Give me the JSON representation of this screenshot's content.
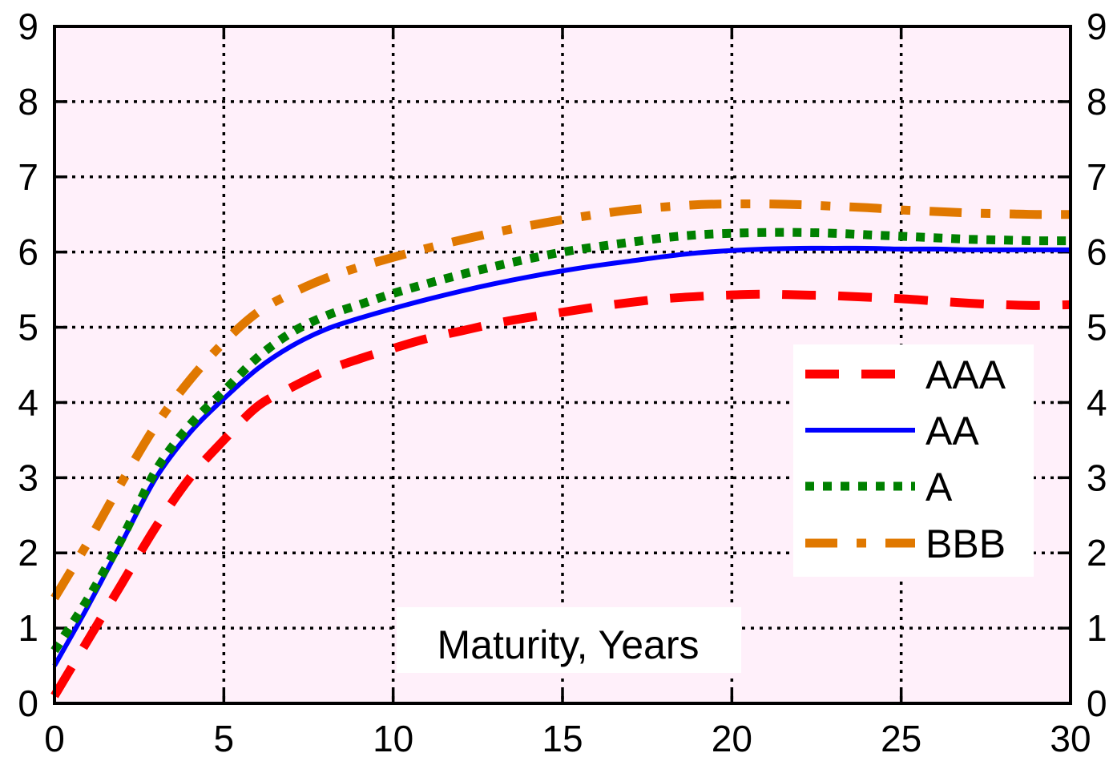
{
  "chart_data": {
    "type": "line",
    "title": "",
    "xlabel": "Maturity, Years",
    "ylabel": "",
    "xlim": [
      0,
      30
    ],
    "ylim": [
      0,
      9
    ],
    "xticks": [
      "0",
      "5",
      "10",
      "15",
      "20",
      "25",
      "30"
    ],
    "yticks": [
      "0",
      "1",
      "2",
      "3",
      "4",
      "5",
      "6",
      "7",
      "8",
      "9"
    ],
    "grid": true,
    "legend_position": "right",
    "background_color": "#fff0fa",
    "series": [
      {
        "name": "AAA",
        "color": "#ff0000",
        "style": "dashed",
        "x": [
          0,
          1,
          2,
          3,
          4,
          5,
          6,
          7,
          8,
          9,
          10,
          11,
          12,
          13,
          14,
          15,
          16,
          17,
          18,
          19,
          20,
          21,
          22,
          23,
          24,
          25,
          26,
          27,
          28,
          29,
          30
        ],
        "y": [
          0.1,
          0.85,
          1.6,
          2.35,
          3.0,
          3.5,
          3.95,
          4.2,
          4.42,
          4.58,
          4.72,
          4.85,
          4.95,
          5.05,
          5.13,
          5.2,
          5.27,
          5.33,
          5.38,
          5.41,
          5.43,
          5.44,
          5.43,
          5.42,
          5.4,
          5.38,
          5.35,
          5.32,
          5.3,
          5.29,
          5.3
        ]
      },
      {
        "name": "AA",
        "color": "#0000ff",
        "style": "solid",
        "x": [
          0,
          1,
          2,
          3,
          4,
          5,
          6,
          7,
          8,
          9,
          10,
          11,
          12,
          13,
          14,
          15,
          16,
          17,
          18,
          19,
          20,
          21,
          22,
          23,
          24,
          25,
          26,
          27,
          28,
          29,
          30
        ],
        "y": [
          0.5,
          1.3,
          2.15,
          3.0,
          3.6,
          4.05,
          4.45,
          4.75,
          4.97,
          5.12,
          5.25,
          5.37,
          5.48,
          5.58,
          5.67,
          5.75,
          5.82,
          5.88,
          5.94,
          5.99,
          6.02,
          6.04,
          6.05,
          6.05,
          6.05,
          6.04,
          6.04,
          6.03,
          6.03,
          6.03,
          6.03
        ]
      },
      {
        "name": "A",
        "color": "#008000",
        "style": "dotted",
        "x": [
          0,
          1,
          2,
          3,
          4,
          5,
          6,
          7,
          8,
          9,
          10,
          11,
          12,
          13,
          14,
          15,
          16,
          17,
          18,
          19,
          20,
          21,
          22,
          23,
          24,
          25,
          26,
          27,
          28,
          29,
          30
        ],
        "y": [
          0.7,
          1.4,
          2.2,
          3.1,
          3.7,
          4.15,
          4.6,
          4.93,
          5.15,
          5.3,
          5.45,
          5.58,
          5.7,
          5.81,
          5.91,
          6.0,
          6.07,
          6.13,
          6.19,
          6.23,
          6.25,
          6.26,
          6.26,
          6.25,
          6.23,
          6.21,
          6.19,
          6.17,
          6.16,
          6.15,
          6.15
        ]
      },
      {
        "name": "BBB",
        "color": "#e07800",
        "style": "dashdot",
        "x": [
          0,
          1,
          2,
          3,
          4,
          5,
          6,
          7,
          8,
          9,
          10,
          11,
          12,
          13,
          14,
          15,
          16,
          17,
          18,
          19,
          20,
          21,
          22,
          23,
          24,
          25,
          26,
          27,
          28,
          29,
          30
        ],
        "y": [
          1.4,
          2.15,
          2.95,
          3.7,
          4.3,
          4.8,
          5.2,
          5.45,
          5.65,
          5.8,
          5.93,
          6.05,
          6.16,
          6.26,
          6.35,
          6.43,
          6.5,
          6.56,
          6.6,
          6.63,
          6.64,
          6.64,
          6.63,
          6.61,
          6.59,
          6.56,
          6.54,
          6.52,
          6.51,
          6.5,
          6.5
        ]
      }
    ]
  }
}
